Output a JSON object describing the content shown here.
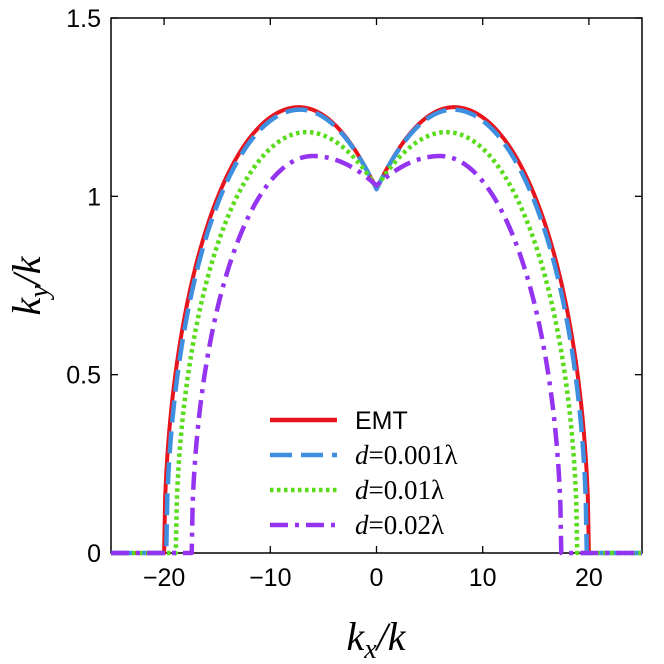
{
  "chart_data": {
    "type": "line",
    "title": "",
    "xlabel": {
      "main": "k",
      "sub": "x",
      "rest": "/k"
    },
    "ylabel": {
      "main": "k",
      "sub": "y",
      "rest": "/k"
    },
    "xlim": [
      -25,
      25
    ],
    "ylim": [
      0,
      1.5
    ],
    "xticks": [
      -20,
      -10,
      0,
      10,
      20
    ],
    "xtick_labels": [
      "−20",
      "−10",
      "0",
      "10",
      "20"
    ],
    "yticks": [
      0,
      0.5,
      1,
      1.5
    ],
    "ytick_labels": [
      "0",
      "0.5",
      "1",
      "1.5"
    ],
    "legend_position": "bottom-center",
    "series": [
      {
        "name": "EMT",
        "legend_italic": "",
        "legend_rest": "EMT",
        "color": "#e8141c",
        "style": "solid",
        "edge": 20.0,
        "peak": 7.3,
        "ymax": 1.25,
        "ycenter": 1.02
      },
      {
        "name": "d=0.001λ",
        "legend_italic": "d",
        "legend_rest": "=0.001λ",
        "color": "#3f8fe0",
        "style": "dashed",
        "edge": 19.8,
        "peak": 7.2,
        "ymax": 1.243,
        "ycenter": 1.02
      },
      {
        "name": "d=0.01λ",
        "legend_italic": "d",
        "legend_rest": "=0.01λ",
        "color": "#5adb1c",
        "style": "dotted",
        "edge": 18.9,
        "peak": 6.6,
        "ymax": 1.18,
        "ycenter": 1.025
      },
      {
        "name": "d=0.02λ",
        "legend_italic": "d",
        "legend_rest": "=0.02λ",
        "color": "#9534f0",
        "style": "dashdot",
        "edge": 17.4,
        "peak": 6.0,
        "ymax": 1.113,
        "ycenter": 1.03
      }
    ]
  }
}
